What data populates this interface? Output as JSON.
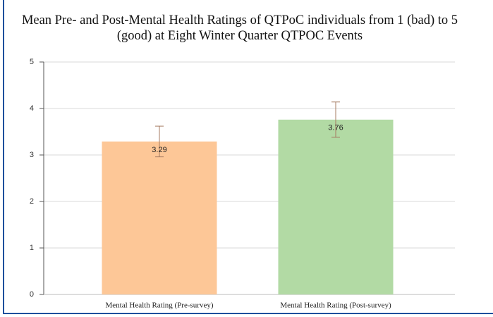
{
  "chart_data": {
    "type": "bar",
    "title": "Mean Pre- and Post-Mental Health Ratings of QTPoC individuals from 1 (bad) to 5 (good) at Eight Winter Quarter QTPOC Events",
    "categories": [
      "Mental Health Rating (Pre-survey)",
      "Mental Health Rating (Post-survey)"
    ],
    "values": [
      3.29,
      3.76
    ],
    "errors": [
      0.33,
      0.38
    ],
    "colors": [
      "#fdc797",
      "#b2daa4"
    ],
    "error_color": "#a57b62",
    "ylim": [
      0,
      5
    ],
    "yticks": [
      0,
      1,
      2,
      3,
      4,
      5
    ],
    "grid": true
  }
}
